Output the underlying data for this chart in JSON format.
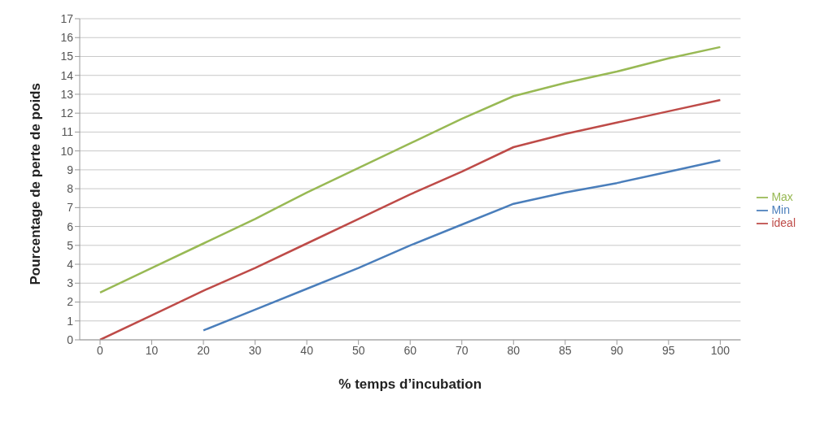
{
  "chart_data": {
    "type": "line",
    "xlabel": "% temps d’incubation",
    "ylabel": "Pourcentage de perte de poids",
    "categories": [
      "0",
      "10",
      "20",
      "30",
      "40",
      "50",
      "60",
      "70",
      "80",
      "85",
      "90",
      "95",
      "100"
    ],
    "series": [
      {
        "name": "Min",
        "color": "#4a7ebb",
        "values": [
          null,
          null,
          0.5,
          1.6,
          2.7,
          3.8,
          5.0,
          6.1,
          7.2,
          7.8,
          8.3,
          8.9,
          9.5
        ]
      },
      {
        "name": "ideal",
        "color": "#be4b48",
        "values": [
          0,
          1.3,
          2.6,
          3.8,
          5.1,
          6.4,
          7.7,
          8.9,
          10.2,
          10.9,
          11.5,
          12.1,
          12.7
        ]
      },
      {
        "name": "Max",
        "color": "#98b954",
        "values": [
          2.5,
          3.8,
          5.1,
          6.4,
          7.8,
          9.1,
          10.4,
          11.7,
          12.9,
          13.6,
          14.2,
          14.9,
          15.5
        ]
      }
    ],
    "ylim": [
      0,
      17
    ],
    "yticks": [
      0,
      1,
      2,
      3,
      4,
      5,
      6,
      7,
      8,
      9,
      10,
      11,
      12,
      13,
      14,
      15,
      16,
      17
    ],
    "grid": "y",
    "legend": "right",
    "marker": "none",
    "line_style": "solid"
  }
}
